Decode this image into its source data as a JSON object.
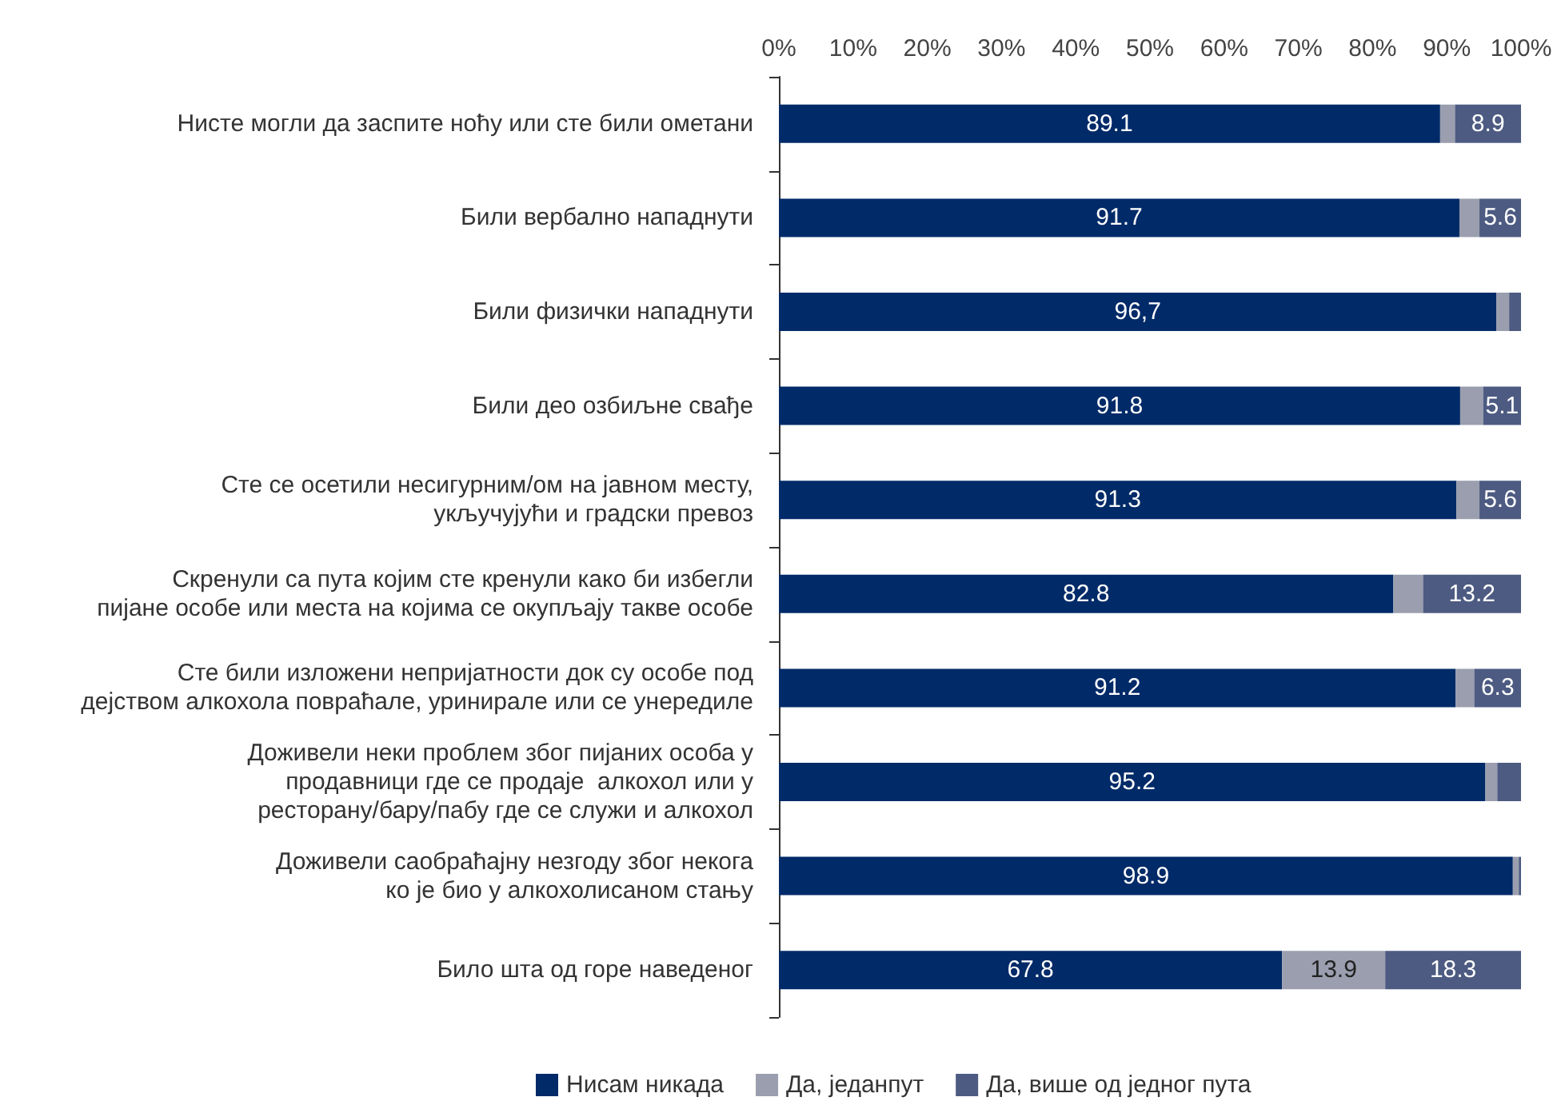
{
  "chart_data": {
    "type": "bar",
    "orientation": "horizontal",
    "stacked": true,
    "categories": [
      "Нисте могли да заспите ноћу или сте били ометани",
      "Били вербално нападнути",
      "Били физички нападнути",
      "Били део озбиљне свађе",
      "Сте се осетили несигурним/ом на јавном месту,\nукључујући и градски превоз",
      "Скренули са пута којим сте кренули како би избегли\nпијане особе или места на којима се окупљају такве особе",
      "Сте били изложени непријатности док су особе под\nдејством алкохола повраћале, уринирале или се унередиле",
      "Доживели неки проблем због пијаних особа у\nпродавници где се продаје  алкохол или у\nресторану/бару/пабу где се служи и алкохол",
      "Доживели саобраћајну незгоду због некога\nко је био у алкохолисаном стању",
      "Било шта од горе наведеног"
    ],
    "series": [
      {
        "name": "Нисам никада",
        "color": "#002a68",
        "values": [
          89.1,
          91.7,
          96.7,
          91.8,
          91.3,
          82.8,
          91.2,
          95.2,
          98.9,
          67.8
        ],
        "value_labels": [
          "89.1",
          "91.7",
          "96,7",
          "91.8",
          "91.3",
          "82.8",
          "91.2",
          "95.2",
          "98.9",
          "67.8"
        ]
      },
      {
        "name": "Да, једанпут",
        "color": "#9a9eae",
        "values": [
          2.0,
          2.7,
          1.7,
          3.1,
          3.1,
          4.0,
          2.5,
          1.6,
          0.8,
          13.9
        ],
        "value_labels": [
          null,
          null,
          null,
          null,
          null,
          null,
          null,
          null,
          null,
          "13.9"
        ]
      },
      {
        "name": "Да, више од једног пута",
        "color": "#4d5b82",
        "values": [
          8.9,
          5.6,
          1.6,
          5.1,
          5.6,
          13.2,
          6.3,
          3.2,
          0.3,
          18.3
        ],
        "value_labels": [
          "8.9",
          "5.6",
          null,
          "5.1",
          "5.6",
          "13.2",
          "6.3",
          null,
          null,
          "18.3"
        ]
      }
    ],
    "xlim": [
      0,
      100
    ],
    "xticks": [
      {
        "value": 0,
        "label": "0%"
      },
      {
        "value": 10,
        "label": "10%"
      },
      {
        "value": 20,
        "label": "20%"
      },
      {
        "value": 30,
        "label": "30%"
      },
      {
        "value": 40,
        "label": "40%"
      },
      {
        "value": 50,
        "label": "50%"
      },
      {
        "value": 60,
        "label": "60%"
      },
      {
        "value": 70,
        "label": "70%"
      },
      {
        "value": 80,
        "label": "80%"
      },
      {
        "value": 90,
        "label": "90%"
      },
      {
        "value": 100,
        "label": "100%"
      }
    ],
    "grid": false,
    "legend": "bottom"
  }
}
